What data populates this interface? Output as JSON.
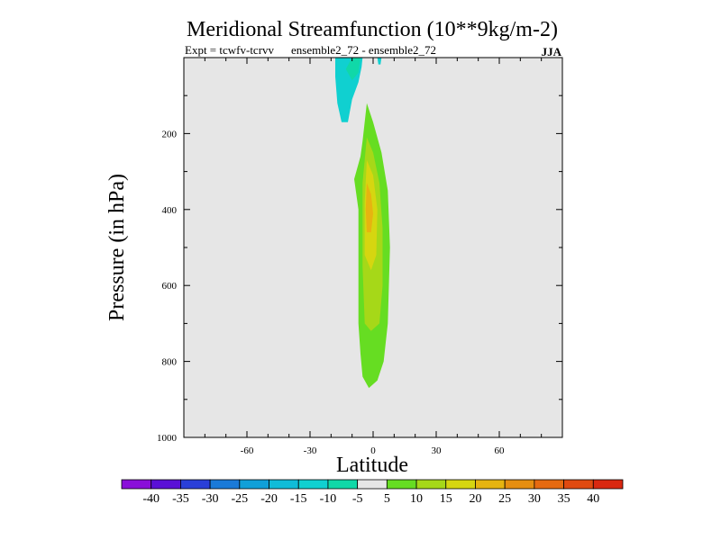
{
  "chart_data": {
    "type": "contour",
    "title": "Meridional Streamfunction (10**9kg/m-2)",
    "subtitle_left": "Expt = tcwfv-tcrvv",
    "subtitle_mid": "ensemble2_72 - ensemble2_72",
    "season": "JJA",
    "xlabel": "Latitude",
    "ylabel": "Pressure (in hPa)",
    "xlim": [
      -90,
      90
    ],
    "ylim": [
      1000,
      0
    ],
    "x_ticks": [
      -60,
      -30,
      0,
      30,
      60
    ],
    "x_tick_labels": [
      "-60",
      "-30",
      "0",
      "30",
      "60"
    ],
    "y_ticks": [
      200,
      400,
      600,
      800,
      1000
    ],
    "y_tick_labels": [
      "200",
      "400",
      "600",
      "800",
      "1000"
    ],
    "colorbar": {
      "labels": [
        "-40",
        "-35",
        "-30",
        "-25",
        "-20",
        "-15",
        "-10",
        "-5",
        "5",
        "10",
        "15",
        "20",
        "25",
        "30",
        "35",
        "40"
      ],
      "colors": [
        "#8a0fd9",
        "#5a10d6",
        "#2a3fd8",
        "#1a7ad8",
        "#10a0d8",
        "#10bcd8",
        "#10d0d0",
        "#10d8a8",
        "#e6e6e6",
        "#66dd22",
        "#a6d818",
        "#d6d610",
        "#e6b410",
        "#e68e10",
        "#e66a10",
        "#e04a10",
        "#d92810"
      ]
    },
    "background_color": "#e6e6e6",
    "contours": [
      {
        "level_class": "-15 to -10",
        "color": "#10d0d0",
        "outline": [
          [
            -13,
            0
          ],
          [
            -5,
            0
          ],
          [
            -5.5,
            25
          ],
          [
            -7,
            65
          ],
          [
            -10,
            110
          ],
          [
            -12,
            170
          ],
          [
            -15,
            170
          ],
          [
            -17,
            120
          ],
          [
            -18,
            50
          ],
          [
            -18,
            0
          ]
        ]
      },
      {
        "level_class": "-10 to -5",
        "color": "#10d8a8",
        "outline": [
          [
            -10,
            0
          ],
          [
            -6,
            0
          ],
          [
            -7,
            40
          ],
          [
            -10,
            60
          ],
          [
            -13,
            30
          ]
        ]
      },
      {
        "level_class": "-15 to -10",
        "color": "#10d0d0",
        "outline": [
          [
            2,
            0
          ],
          [
            4,
            0
          ],
          [
            3.5,
            18
          ],
          [
            2.5,
            18
          ]
        ]
      },
      {
        "level_class": "5 to 10",
        "color": "#66dd22",
        "outline": [
          [
            -3,
            120
          ],
          [
            0,
            170
          ],
          [
            4,
            250
          ],
          [
            7,
            350
          ],
          [
            8,
            500
          ],
          [
            7,
            700
          ],
          [
            5,
            800
          ],
          [
            2,
            850
          ],
          [
            -2,
            870
          ],
          [
            -5,
            840
          ],
          [
            -6,
            780
          ],
          [
            -7,
            700
          ],
          [
            -7,
            550
          ],
          [
            -7,
            400
          ],
          [
            -9,
            320
          ],
          [
            -6,
            260
          ],
          [
            -5,
            220
          ]
        ]
      },
      {
        "level_class": "10 to 15",
        "color": "#a6d818",
        "outline": [
          [
            -3,
            210
          ],
          [
            0,
            250
          ],
          [
            3,
            330
          ],
          [
            4.5,
            450
          ],
          [
            4.5,
            600
          ],
          [
            3,
            700
          ],
          [
            -1,
            720
          ],
          [
            -4,
            700
          ],
          [
            -5,
            550
          ],
          [
            -5,
            330
          ]
        ]
      },
      {
        "level_class": "15 to 20",
        "color": "#d6d610",
        "outline": [
          [
            -3,
            270
          ],
          [
            0,
            310
          ],
          [
            2,
            400
          ],
          [
            1.5,
            520
          ],
          [
            -1,
            560
          ],
          [
            -4,
            520
          ],
          [
            -4,
            380
          ]
        ]
      },
      {
        "level_class": "20 to 25",
        "color": "#e6b410",
        "outline": [
          [
            -3,
            330
          ],
          [
            -1,
            360
          ],
          [
            0,
            410
          ],
          [
            -1,
            460
          ],
          [
            -3,
            460
          ],
          [
            -3.5,
            400
          ]
        ]
      }
    ]
  }
}
